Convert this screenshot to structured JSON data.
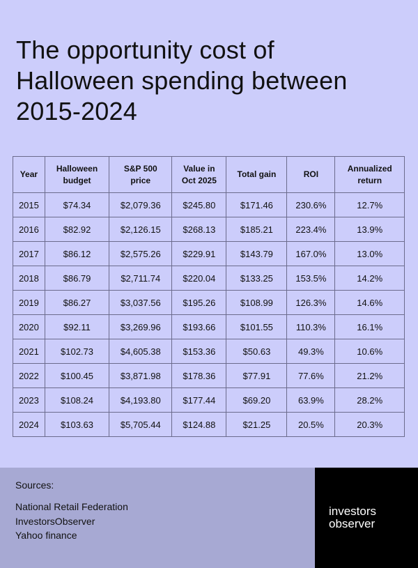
{
  "title": {
    "line1": "The opportunity cost of",
    "line2": "Halloween spending between",
    "line3": "2015-2024"
  },
  "table": {
    "headers": [
      [
        "Year"
      ],
      [
        "Halloween",
        "budget"
      ],
      [
        "S&P 500",
        "price"
      ],
      [
        "Value in",
        "Oct 2025"
      ],
      [
        "Total gain"
      ],
      [
        "ROI"
      ],
      [
        "Annualized",
        "return"
      ]
    ],
    "rows": [
      [
        "2015",
        "$74.34",
        "$2,079.36",
        "$245.80",
        "$171.46",
        "230.6%",
        "12.7%"
      ],
      [
        "2016",
        "$82.92",
        "$2,126.15",
        "$268.13",
        "$185.21",
        "223.4%",
        "13.9%"
      ],
      [
        "2017",
        "$86.12",
        "$2,575.26",
        "$229.91",
        "$143.79",
        "167.0%",
        "13.0%"
      ],
      [
        "2018",
        "$86.79",
        "$2,711.74",
        "$220.04",
        "$133.25",
        "153.5%",
        "14.2%"
      ],
      [
        "2019",
        "$86.27",
        "$3,037.56",
        "$195.26",
        "$108.99",
        "126.3%",
        "14.6%"
      ],
      [
        "2020",
        "$92.11",
        "$3,269.96",
        "$193.66",
        "$101.55",
        "110.3%",
        "16.1%"
      ],
      [
        "2021",
        "$102.73",
        "$4,605.38",
        "$153.36",
        "$50.63",
        "49.3%",
        "10.6%"
      ],
      [
        "2022",
        "$100.45",
        "$3,871.98",
        "$178.36",
        "$77.91",
        "77.6%",
        "21.2%"
      ],
      [
        "2023",
        "$108.24",
        "$4,193.80",
        "$177.44",
        "$69.20",
        "63.9%",
        "28.2%"
      ],
      [
        "2024",
        "$103.63",
        "$5,705.44",
        "$124.88",
        "$21.25",
        "20.5%",
        "20.3%"
      ]
    ]
  },
  "sources": {
    "title": "Sources:",
    "items": [
      "National Retail Federation",
      "InvestorsObserver",
      "Yahoo finance"
    ]
  },
  "logo": {
    "line1": "investors",
    "line2": "observer"
  },
  "colors": {
    "background": "#cccdfb",
    "footer_left": "#a7a9d3",
    "footer_right": "#000000"
  }
}
